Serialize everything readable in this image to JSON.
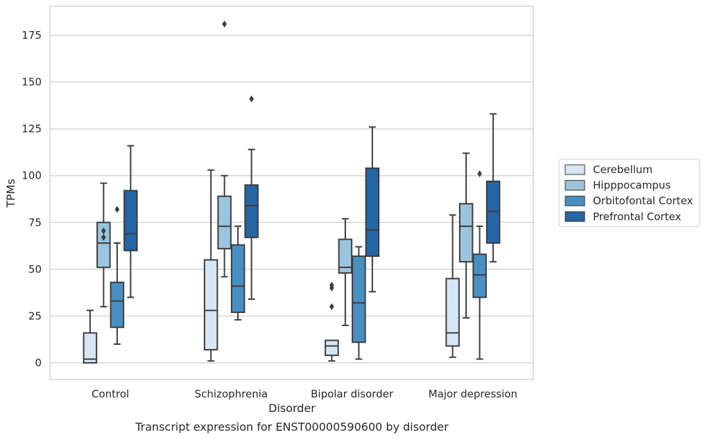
{
  "chart_data": {
    "type": "box",
    "xlabel": "Disorder",
    "ylabel": "TPMs",
    "caption": "Transcript expression for ENST00000590600 by disorder",
    "ylim": [
      -9,
      190
    ],
    "yticks": [
      0,
      25,
      50,
      75,
      100,
      125,
      150,
      175
    ],
    "grid": true,
    "legend_position": "right",
    "categories": [
      "Control",
      "Schizophrenia",
      "Bipolar disorder",
      "Major depression"
    ],
    "series": [
      {
        "name": "Cerebellum",
        "color": "#d7e6f5",
        "boxes": [
          {
            "whisker_low": 0,
            "q1": 0,
            "median": 2,
            "q3": 16,
            "whisker_high": 28,
            "outliers": []
          },
          {
            "whisker_low": 1,
            "q1": 7,
            "median": 28,
            "q3": 55,
            "whisker_high": 103,
            "outliers": []
          },
          {
            "whisker_low": 1,
            "q1": 4,
            "median": 9,
            "q3": 12,
            "whisker_high": 12,
            "outliers": [
              30,
              40,
              41.5
            ]
          },
          {
            "whisker_low": 3,
            "q1": 9,
            "median": 16,
            "q3": 45,
            "whisker_high": 79,
            "outliers": []
          }
        ]
      },
      {
        "name": "Hipppocampus",
        "color": "#9cc4de",
        "boxes": [
          {
            "whisker_low": 30,
            "q1": 51,
            "median": 64,
            "q3": 75,
            "whisker_high": 96,
            "outliers": [
              67,
              70.5
            ]
          },
          {
            "whisker_low": 46,
            "q1": 61,
            "median": 73,
            "q3": 89,
            "whisker_high": 100,
            "outliers": [
              181
            ]
          },
          {
            "whisker_low": 20,
            "q1": 48,
            "median": 51,
            "q3": 66,
            "whisker_high": 77,
            "outliers": []
          },
          {
            "whisker_low": 24,
            "q1": 54,
            "median": 73,
            "q3": 85,
            "whisker_high": 112,
            "outliers": []
          }
        ]
      },
      {
        "name": "Orbitofontal Cortex",
        "color": "#4a8fc1",
        "boxes": [
          {
            "whisker_low": 10,
            "q1": 19,
            "median": 33,
            "q3": 43,
            "whisker_high": 64,
            "outliers": [
              82
            ]
          },
          {
            "whisker_low": 23,
            "q1": 27,
            "median": 41,
            "q3": 63,
            "whisker_high": 73,
            "outliers": []
          },
          {
            "whisker_low": 2,
            "q1": 11,
            "median": 32,
            "q3": 57,
            "whisker_high": 62,
            "outliers": []
          },
          {
            "whisker_low": 2,
            "q1": 35,
            "median": 47,
            "q3": 58,
            "whisker_high": 73,
            "outliers": [
              101
            ]
          }
        ]
      },
      {
        "name": "Prefrontal Cortex",
        "color": "#2664a3",
        "boxes": [
          {
            "whisker_low": 35,
            "q1": 60,
            "median": 69,
            "q3": 92,
            "whisker_high": 116,
            "outliers": []
          },
          {
            "whisker_low": 34,
            "q1": 67,
            "median": 84,
            "q3": 95,
            "whisker_high": 114,
            "outliers": [
              141
            ]
          },
          {
            "whisker_low": 38,
            "q1": 57,
            "median": 71,
            "q3": 104,
            "whisker_high": 126,
            "outliers": []
          },
          {
            "whisker_low": 54,
            "q1": 64,
            "median": 81,
            "q3": 97,
            "whisker_high": 133,
            "outliers": []
          }
        ]
      }
    ]
  }
}
